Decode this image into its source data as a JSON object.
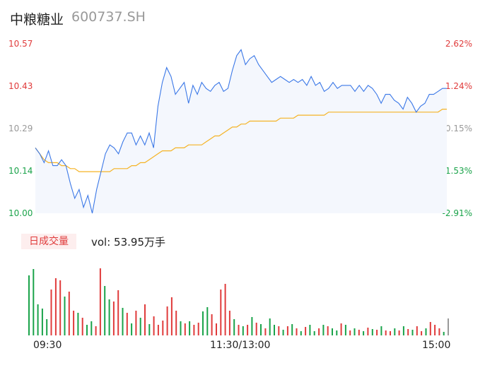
{
  "header": {
    "name": "中粮糖业",
    "code": "600737.SH"
  },
  "volume_label": {
    "badge": "日成交量",
    "text": "vol: 53.95万手"
  },
  "colors": {
    "price_line": "#3b78e7",
    "avg_line": "#f5b324",
    "up": "#e03b3b",
    "down": "#1aa34a",
    "flat": "#999999"
  },
  "chart_data": [
    {
      "type": "line",
      "title": "",
      "x_ticks": [
        "09:30",
        "11:30/13:00",
        "15:00"
      ],
      "y_ticks": [
        "10.57",
        "10.43",
        "10.29",
        "10.14",
        "10.00"
      ],
      "y_right_ticks": [
        "2.62%",
        "1.24%",
        "-0.15%",
        "-1.53%",
        "-2.91%"
      ],
      "ylim": [
        10.0,
        10.57
      ],
      "series": [
        {
          "role": "price",
          "values": [
            10.22,
            10.2,
            10.17,
            10.21,
            10.16,
            10.16,
            10.18,
            10.16,
            10.1,
            10.05,
            10.08,
            10.02,
            10.06,
            10.0,
            10.08,
            10.14,
            10.2,
            10.23,
            10.22,
            10.2,
            10.24,
            10.27,
            10.27,
            10.23,
            10.26,
            10.23,
            10.27,
            10.22,
            10.36,
            10.44,
            10.49,
            10.46,
            10.4,
            10.42,
            10.44,
            10.37,
            10.43,
            10.4,
            10.44,
            10.42,
            10.41,
            10.43,
            10.44,
            10.41,
            10.42,
            10.48,
            10.53,
            10.55,
            10.5,
            10.52,
            10.53,
            10.5,
            10.48,
            10.46,
            10.44,
            10.45,
            10.46,
            10.45,
            10.44,
            10.45,
            10.44,
            10.45,
            10.43,
            10.46,
            10.43,
            10.44,
            10.41,
            10.42,
            10.44,
            10.42,
            10.43,
            10.43,
            10.43,
            10.41,
            10.43,
            10.41,
            10.43,
            10.42,
            10.4,
            10.37,
            10.4,
            10.4,
            10.38,
            10.37,
            10.35,
            10.39,
            10.37,
            10.34,
            10.36,
            10.37,
            10.4,
            10.4,
            10.41,
            10.42,
            10.42
          ]
        },
        {
          "role": "average",
          "values": [
            10.22,
            10.2,
            10.18,
            10.17,
            10.17,
            10.17,
            10.16,
            10.16,
            10.15,
            10.15,
            10.14,
            10.14,
            10.14,
            10.14,
            10.14,
            10.14,
            10.14,
            10.14,
            10.15,
            10.15,
            10.15,
            10.15,
            10.16,
            10.16,
            10.17,
            10.17,
            10.18,
            10.19,
            10.2,
            10.21,
            10.21,
            10.21,
            10.22,
            10.22,
            10.22,
            10.23,
            10.23,
            10.23,
            10.23,
            10.24,
            10.25,
            10.26,
            10.26,
            10.27,
            10.28,
            10.29,
            10.29,
            10.3,
            10.3,
            10.31,
            10.31,
            10.31,
            10.31,
            10.31,
            10.31,
            10.31,
            10.32,
            10.32,
            10.32,
            10.32,
            10.33,
            10.33,
            10.33,
            10.33,
            10.33,
            10.33,
            10.33,
            10.34,
            10.34,
            10.34,
            10.34,
            10.34,
            10.34,
            10.34,
            10.34,
            10.34,
            10.34,
            10.34,
            10.34,
            10.34,
            10.34,
            10.34,
            10.34,
            10.34,
            10.34,
            10.34,
            10.34,
            10.34,
            10.34,
            10.34,
            10.34,
            10.34,
            10.34,
            10.35,
            10.35
          ]
        }
      ]
    },
    {
      "type": "bar",
      "title": "",
      "unit": "万手",
      "values": [
        8.5,
        9.4,
        4.4,
        3.8,
        2.3,
        6.5,
        8.1,
        7.8,
        5.5,
        6.2,
        3.5,
        3.2,
        2.5,
        1.5,
        2.0,
        1.3,
        9.5,
        7.0,
        5.1,
        4.8,
        6.4,
        3.9,
        3.2,
        1.7,
        3.5,
        2.5,
        4.4,
        1.6,
        2.7,
        1.5,
        2.1,
        4.1,
        5.4,
        3.5,
        2.0,
        1.7,
        2.0,
        1.5,
        1.8,
        3.4,
        4.0,
        3.0,
        1.7,
        6.5,
        7.3,
        3.5,
        2.3,
        1.5,
        1.3,
        1.5,
        2.6,
        1.8,
        1.6,
        1.0,
        2.4,
        1.5,
        1.3,
        0.8,
        1.3,
        1.6,
        1.0,
        0.6,
        1.2,
        1.5,
        0.6,
        1.0,
        1.5,
        1.3,
        1.0,
        0.7,
        1.7,
        1.5,
        0.7,
        1.0,
        0.8,
        0.6,
        1.1,
        0.9,
        0.8,
        1.3,
        0.7,
        0.6,
        1.0,
        0.7,
        1.3,
        0.9,
        0.8,
        1.3,
        0.6,
        1.0,
        1.9,
        1.5,
        1.0,
        0.5,
        2.4
      ],
      "directions": [
        "down",
        "down",
        "down",
        "down",
        "down",
        "up",
        "up",
        "up",
        "down",
        "up",
        "up",
        "down",
        "up",
        "down",
        "down",
        "up",
        "up",
        "down",
        "down",
        "up",
        "up",
        "down",
        "up",
        "down",
        "up",
        "down",
        "up",
        "down",
        "up",
        "up",
        "up",
        "up",
        "up",
        "up",
        "down",
        "up",
        "down",
        "up",
        "up",
        "down",
        "down",
        "up",
        "up",
        "up",
        "up",
        "up",
        "down",
        "up",
        "down",
        "up",
        "down",
        "up",
        "down",
        "up",
        "down",
        "down",
        "up",
        "down",
        "up",
        "down",
        "up",
        "down",
        "up",
        "down",
        "down",
        "up",
        "down",
        "up",
        "down",
        "down",
        "up",
        "down",
        "up",
        "down",
        "up",
        "down",
        "up",
        "down",
        "up",
        "down",
        "up",
        "up",
        "down",
        "up",
        "down",
        "up",
        "down",
        "up",
        "up",
        "down",
        "up",
        "up",
        "up",
        "down",
        "flat"
      ]
    }
  ]
}
